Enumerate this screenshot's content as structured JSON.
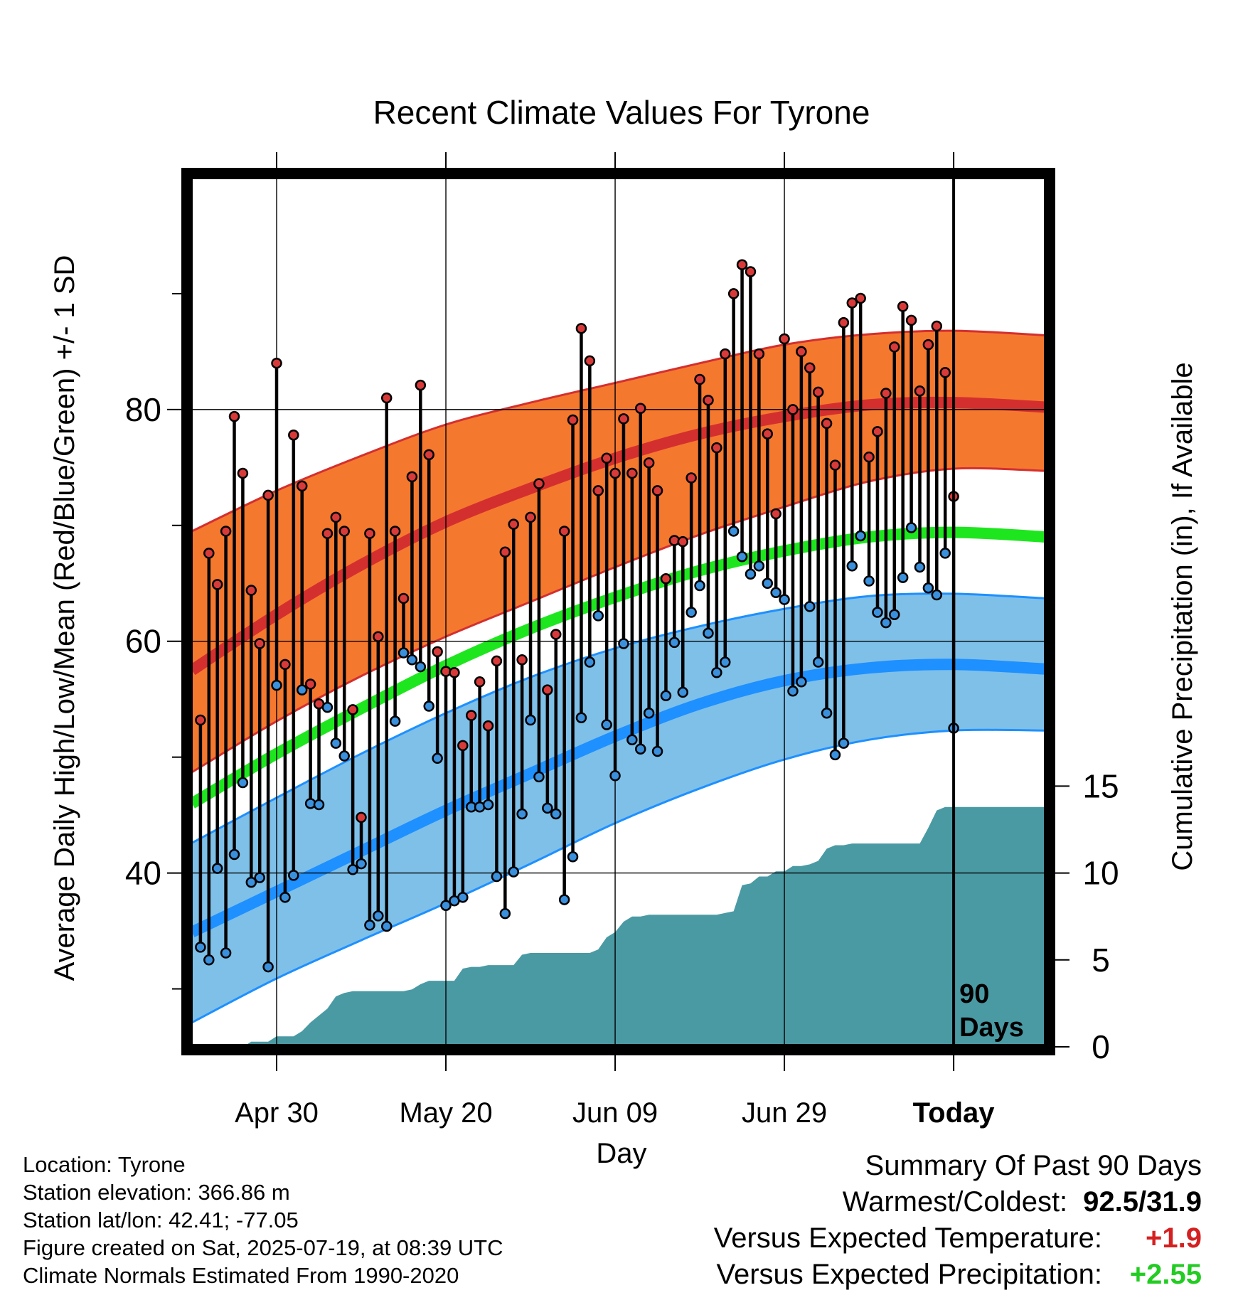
{
  "chart_data": {
    "type": "line",
    "title": "Recent Climate Values For Tyrone",
    "xlabel": "Day",
    "ylabel": "Average Daily High/Low/Mean (Red/Blue/Green) +/- 1 SD",
    "y2label": "Cumulative Precipitation (in), If Available",
    "ylim": [
      25,
      100
    ],
    "y2lim": [
      0,
      50
    ],
    "xlim": [
      0,
      101
    ],
    "yticks": [
      40,
      60,
      80
    ],
    "y2ticks": [
      0,
      5,
      10,
      15
    ],
    "xtick_positions": [
      10,
      30,
      50,
      70,
      90
    ],
    "xtick_labels": [
      "Apr 30",
      "May 20",
      "Jun 09",
      "Jun 29",
      "Today"
    ],
    "today_x": 90,
    "today_marker": [
      "90",
      "Days"
    ],
    "colors": {
      "high_band": "#F5782F",
      "high_mean": "#D42F2F",
      "low_band": "#7FC0E8",
      "low_mean": "#1E90FF",
      "mean": "#1EE61E",
      "precip": "#4A9AA4",
      "high_dot": "#D83A3A",
      "low_dot": "#3A90DC"
    },
    "normals_x": [
      0,
      10,
      20,
      30,
      40,
      50,
      60,
      70,
      80,
      90,
      101
    ],
    "normal_high": [
      57.5,
      62.3,
      66.6,
      70.3,
      73.2,
      75.8,
      77.9,
      79.4,
      80.4,
      80.6,
      80.2
    ],
    "normal_high_upper": [
      69.5,
      73.0,
      76.0,
      78.7,
      80.6,
      82.3,
      84.0,
      85.6,
      86.5,
      86.8,
      86.4
    ],
    "normal_high_lower": [
      48.7,
      53.1,
      57.0,
      60.4,
      63.4,
      66.4,
      69.2,
      71.6,
      73.8,
      74.9,
      74.7
    ],
    "normal_mean": [
      46.0,
      50.3,
      54.2,
      57.9,
      61.1,
      63.8,
      66.1,
      67.8,
      69.0,
      69.4,
      69.0
    ],
    "normal_low": [
      34.9,
      38.4,
      41.9,
      45.4,
      48.6,
      51.8,
      54.6,
      56.6,
      57.7,
      58.0,
      57.6
    ],
    "normal_low_upper": [
      42.6,
      46.5,
      50.3,
      53.8,
      56.9,
      59.4,
      61.3,
      62.8,
      63.9,
      64.1,
      63.7
    ],
    "normal_low_lower": [
      27.1,
      30.9,
      34.2,
      37.4,
      40.8,
      44.3,
      47.3,
      49.8,
      51.5,
      52.3,
      52.3
    ],
    "daily_high": [
      53.2,
      67.6,
      64.9,
      69.5,
      79.4,
      74.5,
      64.4,
      59.8,
      72.6,
      84.0,
      58.0,
      77.8,
      73.4,
      56.3,
      54.6,
      69.3,
      70.7,
      69.5,
      54.1,
      44.8,
      69.3,
      60.4,
      81.0,
      69.5,
      63.7,
      74.2,
      82.1,
      76.1,
      59.1,
      57.4,
      57.3,
      51.0,
      53.6,
      56.5,
      52.7,
      58.3,
      67.7,
      70.1,
      58.4,
      70.7,
      73.6,
      55.8,
      60.6,
      69.5,
      79.1,
      87.0,
      84.2,
      73.0,
      75.8,
      74.5,
      79.2,
      74.5,
      80.1,
      75.4,
      73.0,
      65.4,
      68.7,
      68.6,
      74.1,
      82.6,
      80.8,
      76.7,
      84.8,
      90.0,
      92.5,
      91.9,
      84.8,
      77.9,
      71.0,
      86.1,
      80.0,
      85.0,
      83.6,
      81.5,
      78.8,
      75.2,
      87.5,
      89.2,
      89.6,
      75.9,
      78.1,
      81.4,
      85.4,
      88.9,
      87.7,
      81.6,
      85.6,
      87.2,
      83.2,
      72.5
    ],
    "daily_low": [
      33.6,
      32.5,
      40.4,
      33.1,
      41.6,
      47.8,
      39.2,
      39.6,
      31.9,
      56.2,
      37.9,
      39.8,
      55.8,
      46.0,
      45.9,
      54.3,
      51.2,
      50.1,
      40.3,
      40.8,
      35.5,
      36.3,
      35.4,
      53.1,
      59.0,
      58.4,
      57.8,
      54.4,
      49.9,
      37.2,
      37.6,
      37.9,
      45.7,
      45.7,
      45.9,
      39.7,
      36.5,
      40.1,
      45.1,
      53.2,
      48.3,
      45.6,
      45.1,
      37.7,
      41.4,
      53.4,
      58.2,
      62.2,
      52.8,
      48.4,
      59.8,
      51.5,
      50.7,
      53.8,
      50.5,
      55.3,
      59.9,
      55.6,
      62.5,
      64.8,
      60.7,
      57.3,
      58.2,
      69.5,
      67.3,
      65.8,
      66.5,
      65.0,
      64.2,
      63.6,
      55.7,
      56.5,
      63.0,
      58.2,
      53.8,
      50.2,
      51.2,
      66.5,
      69.1,
      65.2,
      62.5,
      61.6,
      62.3,
      65.5,
      69.8,
      66.4,
      64.6,
      64.0,
      67.6,
      52.5
    ],
    "cum_precip": [
      0,
      0,
      0,
      0,
      0,
      0,
      0.3,
      0.3,
      0.3,
      0.6,
      0.6,
      0.6,
      0.9,
      1.4,
      1.8,
      2.2,
      2.9,
      3.1,
      3.2,
      3.2,
      3.2,
      3.2,
      3.2,
      3.2,
      3.2,
      3.3,
      3.6,
      3.8,
      3.8,
      3.8,
      3.8,
      4.5,
      4.6,
      4.6,
      4.7,
      4.7,
      4.7,
      4.7,
      5.3,
      5.4,
      5.4,
      5.4,
      5.4,
      5.4,
      5.4,
      5.4,
      5.4,
      5.6,
      6.3,
      6.6,
      7.2,
      7.5,
      7.5,
      7.6,
      7.6,
      7.6,
      7.6,
      7.6,
      7.6,
      7.6,
      7.6,
      7.6,
      7.7,
      7.8,
      9.3,
      9.4,
      9.8,
      9.8,
      10.1,
      10.1,
      10.4,
      10.4,
      10.5,
      10.7,
      11.4,
      11.6,
      11.6,
      11.7,
      11.7,
      11.7,
      11.7,
      11.7,
      11.7,
      11.7,
      11.7,
      11.7,
      12.6,
      13.6,
      13.8,
      13.8
    ],
    "annotations": [
      "90 Days"
    ]
  },
  "info": {
    "location": "Location: Tyrone",
    "elevation": "Station elevation: 366.86 m",
    "latlon": "Station lat/lon: 42.41; -77.05",
    "created": "Figure created on Sat, 2025-07-19, at 08:39 UTC",
    "normals": "Climate Normals Estimated From 1990-2020"
  },
  "summary": {
    "title": "Summary Of Past 90 Days",
    "warm_cold_label": "Warmest/Coldest:",
    "warm_cold_value": "92.5/31.9",
    "temp_label": "Versus Expected Temperature:",
    "temp_value": "+1.9",
    "temp_color": "#D42020",
    "precip_label": "Versus Expected Precipitation:",
    "precip_value": "+2.55",
    "precip_color": "#22CC22"
  }
}
